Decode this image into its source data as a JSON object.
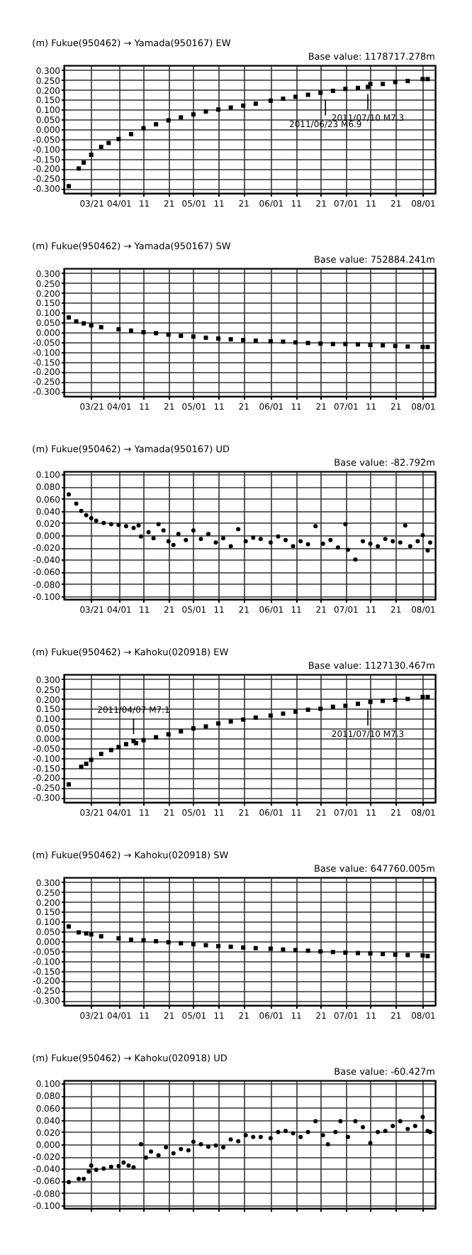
{
  "chart_data": [
    {
      "type": "scatter",
      "title": "(m) Fukue(950462) → Yamada(950167)  EW",
      "annotations": [
        "Base value: 1178717.278m",
        {
          "text": "2011/06/23 M6.9",
          "x": "2011-06-23",
          "y": 0.185
        },
        {
          "text": "2011/07/10 M7.3",
          "x": "2011-07-10",
          "y": 0.215
        }
      ],
      "marker": "square",
      "grid": true,
      "xlim": [
        "2011-03-10",
        "2011-08-06"
      ],
      "xticks": [
        {
          "value": "2011-03-21",
          "label": "03/21"
        },
        {
          "value": "2011-04-01",
          "label": "04/01"
        },
        {
          "value": "2011-04-11",
          "label": "11"
        },
        {
          "value": "2011-04-21",
          "label": "21"
        },
        {
          "value": "2011-05-01",
          "label": "05/01"
        },
        {
          "value": "2011-05-11",
          "label": "11"
        },
        {
          "value": "2011-05-21",
          "label": "21"
        },
        {
          "value": "2011-06-01",
          "label": "06/01"
        },
        {
          "value": "2011-06-11",
          "label": "11"
        },
        {
          "value": "2011-06-21",
          "label": "21"
        },
        {
          "value": "2011-07-01",
          "label": "07/01"
        },
        {
          "value": "2011-07-11",
          "label": "11"
        },
        {
          "value": "2011-07-21",
          "label": "21"
        },
        {
          "value": "2011-08-01",
          "label": "08/01"
        }
      ],
      "ylim": [
        -0.325,
        0.325
      ],
      "yticks": [
        {
          "value": 0.3,
          "label": "0.300"
        },
        {
          "value": 0.25,
          "label": "0.250"
        },
        {
          "value": 0.2,
          "label": "0.200"
        },
        {
          "value": 0.15,
          "label": "0.150"
        },
        {
          "value": 0.1,
          "label": "0.100"
        },
        {
          "value": 0.05,
          "label": "0.050"
        },
        {
          "value": 0,
          "label": "0.000"
        },
        {
          "value": -0.05,
          "label": "-0.050"
        },
        {
          "value": -0.1,
          "label": "-0.100"
        },
        {
          "value": -0.15,
          "label": "-0.150"
        },
        {
          "value": -0.2,
          "label": "-0.200"
        },
        {
          "value": -0.25,
          "label": "-0.250"
        },
        {
          "value": -0.3,
          "label": "-0.300"
        }
      ],
      "x": [
        "2011-03-12",
        "2011-03-16",
        "2011-03-18",
        "2011-03-21",
        "2011-03-25",
        "2011-03-28",
        "2011-04-01",
        "2011-04-06",
        "2011-04-11",
        "2011-04-16",
        "2011-04-21",
        "2011-04-26",
        "2011-05-01",
        "2011-05-06",
        "2011-05-11",
        "2011-05-16",
        "2011-05-21",
        "2011-05-26",
        "2011-06-01",
        "2011-06-06",
        "2011-06-11",
        "2011-06-16",
        "2011-06-21",
        "2011-06-26",
        "2011-07-01",
        "2011-07-06",
        "2011-07-10",
        "2011-07-11",
        "2011-07-16",
        "2011-07-21",
        "2011-07-26",
        "2011-08-01",
        "2011-08-03"
      ],
      "series": [
        {
          "color": "#000000",
          "values": [
            -0.29,
            -0.2,
            -0.17,
            -0.13,
            -0.09,
            -0.07,
            -0.05,
            -0.025,
            0.005,
            0.025,
            0.045,
            0.06,
            0.075,
            0.09,
            0.1,
            0.11,
            0.12,
            0.13,
            0.145,
            0.155,
            0.165,
            0.175,
            0.185,
            0.195,
            0.205,
            0.21,
            0.215,
            0.23,
            0.23,
            0.24,
            0.245,
            0.255,
            0.255
          ]
        }
      ]
    },
    {
      "type": "scatter",
      "title": "(m) Fukue(950462) → Yamada(950167)  SW",
      "annotations": [
        "Base value: 752884.241m"
      ],
      "marker": "square",
      "grid": true,
      "xlim": [
        "2011-03-10",
        "2011-08-06"
      ],
      "xticks": [
        {
          "value": "2011-03-21",
          "label": "03/21"
        },
        {
          "value": "2011-04-01",
          "label": "04/01"
        },
        {
          "value": "2011-04-11",
          "label": "11"
        },
        {
          "value": "2011-04-21",
          "label": "21"
        },
        {
          "value": "2011-05-01",
          "label": "05/01"
        },
        {
          "value": "2011-05-11",
          "label": "11"
        },
        {
          "value": "2011-05-21",
          "label": "21"
        },
        {
          "value": "2011-06-01",
          "label": "06/01"
        },
        {
          "value": "2011-06-11",
          "label": "11"
        },
        {
          "value": "2011-06-21",
          "label": "21"
        },
        {
          "value": "2011-07-01",
          "label": "07/01"
        },
        {
          "value": "2011-07-11",
          "label": "11"
        },
        {
          "value": "2011-07-21",
          "label": "21"
        },
        {
          "value": "2011-08-01",
          "label": "08/01"
        }
      ],
      "ylim": [
        -0.325,
        0.325
      ],
      "yticks": [
        {
          "value": 0.3,
          "label": "0.300"
        },
        {
          "value": 0.25,
          "label": "0.250"
        },
        {
          "value": 0.2,
          "label": "0.200"
        },
        {
          "value": 0.15,
          "label": "0.150"
        },
        {
          "value": 0.1,
          "label": "0.100"
        },
        {
          "value": 0.05,
          "label": "0.050"
        },
        {
          "value": 0,
          "label": "0.000"
        },
        {
          "value": -0.05,
          "label": "-0.050"
        },
        {
          "value": -0.1,
          "label": "-0.100"
        },
        {
          "value": -0.15,
          "label": "-0.150"
        },
        {
          "value": -0.2,
          "label": "-0.200"
        },
        {
          "value": -0.25,
          "label": "-0.250"
        },
        {
          "value": -0.3,
          "label": "-0.300"
        }
      ],
      "x": [
        "2011-03-12",
        "2011-03-15",
        "2011-03-18",
        "2011-03-21",
        "2011-03-25",
        "2011-04-01",
        "2011-04-06",
        "2011-04-11",
        "2011-04-16",
        "2011-04-21",
        "2011-04-26",
        "2011-05-01",
        "2011-05-06",
        "2011-05-11",
        "2011-05-16",
        "2011-05-21",
        "2011-05-26",
        "2011-06-01",
        "2011-06-06",
        "2011-06-11",
        "2011-06-16",
        "2011-06-21",
        "2011-06-26",
        "2011-07-01",
        "2011-07-06",
        "2011-07-11",
        "2011-07-16",
        "2011-07-21",
        "2011-07-26",
        "2011-08-01",
        "2011-08-03"
      ],
      "series": [
        {
          "color": "#000000",
          "values": [
            0.075,
            0.055,
            0.045,
            0.035,
            0.025,
            0.015,
            0.008,
            0.0,
            -0.005,
            -0.012,
            -0.018,
            -0.022,
            -0.028,
            -0.032,
            -0.036,
            -0.04,
            -0.043,
            -0.046,
            -0.048,
            -0.052,
            -0.055,
            -0.058,
            -0.06,
            -0.06,
            -0.062,
            -0.065,
            -0.067,
            -0.07,
            -0.073,
            -0.075,
            -0.075
          ]
        }
      ]
    },
    {
      "type": "scatter",
      "title": "(m) Fukue(950462) → Yamada(950167)  UD",
      "annotations": [
        "Base value: -82.792m"
      ],
      "marker": "circle",
      "grid": true,
      "xlim": [
        "2011-03-10",
        "2011-08-06"
      ],
      "xticks": [
        {
          "value": "2011-03-21",
          "label": "03/21"
        },
        {
          "value": "2011-04-01",
          "label": "04/01"
        },
        {
          "value": "2011-04-11",
          "label": "11"
        },
        {
          "value": "2011-04-21",
          "label": "21"
        },
        {
          "value": "2011-05-01",
          "label": "05/01"
        },
        {
          "value": "2011-05-11",
          "label": "11"
        },
        {
          "value": "2011-05-21",
          "label": "21"
        },
        {
          "value": "2011-06-01",
          "label": "06/01"
        },
        {
          "value": "2011-06-11",
          "label": "11"
        },
        {
          "value": "2011-06-21",
          "label": "21"
        },
        {
          "value": "2011-07-01",
          "label": "07/01"
        },
        {
          "value": "2011-07-11",
          "label": "11"
        },
        {
          "value": "2011-07-21",
          "label": "21"
        },
        {
          "value": "2011-08-01",
          "label": "08/01"
        }
      ],
      "ylim": [
        -0.105,
        0.105
      ],
      "yticks": [
        {
          "value": 0.1,
          "label": "0.100"
        },
        {
          "value": 0.08,
          "label": "0.080"
        },
        {
          "value": 0.06,
          "label": "0.060"
        },
        {
          "value": 0.04,
          "label": "0.040"
        },
        {
          "value": 0.02,
          "label": "0.020"
        },
        {
          "value": 0,
          "label": "0.000"
        },
        {
          "value": -0.02,
          "label": "-0.020"
        },
        {
          "value": -0.04,
          "label": "-0.040"
        },
        {
          "value": -0.06,
          "label": "-0.060"
        },
        {
          "value": -0.08,
          "label": "-0.080"
        },
        {
          "value": -0.1,
          "label": "-0.100"
        }
      ],
      "x": [
        "2011-03-12",
        "2011-03-15",
        "2011-03-17",
        "2011-03-19",
        "2011-03-21",
        "2011-03-23",
        "2011-03-26",
        "2011-03-29",
        "2011-04-01",
        "2011-04-04",
        "2011-04-07",
        "2011-04-09",
        "2011-04-10",
        "2011-04-13",
        "2011-04-15",
        "2011-04-17",
        "2011-04-19",
        "2011-04-21",
        "2011-04-23",
        "2011-04-25",
        "2011-04-28",
        "2011-05-01",
        "2011-05-04",
        "2011-05-07",
        "2011-05-10",
        "2011-05-13",
        "2011-05-16",
        "2011-05-19",
        "2011-05-22",
        "2011-05-25",
        "2011-05-28",
        "2011-06-01",
        "2011-06-04",
        "2011-06-07",
        "2011-06-10",
        "2011-06-13",
        "2011-06-16",
        "2011-06-19",
        "2011-06-22",
        "2011-06-25",
        "2011-06-28",
        "2011-07-01",
        "2011-07-02",
        "2011-07-05",
        "2011-07-08",
        "2011-07-11",
        "2011-07-14",
        "2011-07-17",
        "2011-07-20",
        "2011-07-23",
        "2011-07-25",
        "2011-07-27",
        "2011-07-30",
        "2011-08-01",
        "2011-08-03",
        "2011-08-04"
      ],
      "series": [
        {
          "color": "#000000",
          "values": [
            0.067,
            0.052,
            0.04,
            0.033,
            0.028,
            0.024,
            0.02,
            0.018,
            0.017,
            0.015,
            0.012,
            0.016,
            -0.002,
            0.005,
            -0.005,
            0.018,
            0.008,
            -0.01,
            -0.016,
            0.002,
            -0.008,
            0.008,
            -0.006,
            0.002,
            -0.012,
            -0.005,
            -0.018,
            0.01,
            -0.01,
            -0.004,
            -0.006,
            -0.012,
            -0.002,
            -0.008,
            -0.018,
            -0.01,
            -0.015,
            0.015,
            -0.014,
            -0.008,
            -0.02,
            0.018,
            -0.024,
            -0.04,
            -0.01,
            -0.014,
            -0.018,
            -0.006,
            -0.01,
            -0.012,
            0.016,
            -0.018,
            -0.01,
            0.0,
            -0.025,
            -0.012
          ]
        }
      ]
    },
    {
      "type": "scatter",
      "title": "(m) Fukue(950462) → Kahoku(020918)  EW",
      "annotations": [
        "Base value: 1127130.467m",
        {
          "text": "2011/04/07 M7.1",
          "x": "2011-04-07",
          "y": -0.015
        },
        {
          "text": "2011/07/10 M7.3",
          "x": "2011-07-10",
          "y": 0.18
        }
      ],
      "marker": "square",
      "grid": true,
      "xlim": [
        "2011-03-10",
        "2011-08-06"
      ],
      "xticks": [
        {
          "value": "2011-03-21",
          "label": "03/21"
        },
        {
          "value": "2011-04-01",
          "label": "04/01"
        },
        {
          "value": "2011-04-11",
          "label": "11"
        },
        {
          "value": "2011-04-21",
          "label": "21"
        },
        {
          "value": "2011-05-01",
          "label": "05/01"
        },
        {
          "value": "2011-05-11",
          "label": "11"
        },
        {
          "value": "2011-05-21",
          "label": "21"
        },
        {
          "value": "2011-06-01",
          "label": "06/01"
        },
        {
          "value": "2011-06-11",
          "label": "11"
        },
        {
          "value": "2011-06-21",
          "label": "21"
        },
        {
          "value": "2011-07-01",
          "label": "07/01"
        },
        {
          "value": "2011-07-11",
          "label": "11"
        },
        {
          "value": "2011-07-21",
          "label": "21"
        },
        {
          "value": "2011-08-01",
          "label": "08/01"
        }
      ],
      "ylim": [
        -0.325,
        0.325
      ],
      "yticks": [
        {
          "value": 0.3,
          "label": "0.300"
        },
        {
          "value": 0.25,
          "label": "0.250"
        },
        {
          "value": 0.2,
          "label": "0.200"
        },
        {
          "value": 0.15,
          "label": "0.150"
        },
        {
          "value": 0.1,
          "label": "0.100"
        },
        {
          "value": 0.05,
          "label": "0.050"
        },
        {
          "value": 0,
          "label": "0.000"
        },
        {
          "value": -0.05,
          "label": "-0.050"
        },
        {
          "value": -0.1,
          "label": "-0.100"
        },
        {
          "value": -0.15,
          "label": "-0.150"
        },
        {
          "value": -0.2,
          "label": "-0.200"
        },
        {
          "value": -0.25,
          "label": "-0.250"
        },
        {
          "value": -0.3,
          "label": "-0.300"
        }
      ],
      "x": [
        "2011-03-12",
        "2011-03-17",
        "2011-03-19",
        "2011-03-21",
        "2011-03-25",
        "2011-03-29",
        "2011-04-01",
        "2011-04-04",
        "2011-04-07",
        "2011-04-08",
        "2011-04-11",
        "2011-04-16",
        "2011-04-21",
        "2011-04-26",
        "2011-05-01",
        "2011-05-06",
        "2011-05-11",
        "2011-05-16",
        "2011-05-21",
        "2011-05-26",
        "2011-06-01",
        "2011-06-06",
        "2011-06-11",
        "2011-06-16",
        "2011-06-21",
        "2011-06-26",
        "2011-07-01",
        "2011-07-06",
        "2011-07-11",
        "2011-07-16",
        "2011-07-21",
        "2011-07-26",
        "2011-08-01",
        "2011-08-03"
      ],
      "series": [
        {
          "color": "#000000",
          "values": [
            -0.235,
            -0.145,
            -0.13,
            -0.11,
            -0.08,
            -0.06,
            -0.045,
            -0.03,
            -0.015,
            -0.025,
            -0.01,
            0.005,
            0.02,
            0.035,
            0.05,
            0.06,
            0.075,
            0.085,
            0.095,
            0.105,
            0.115,
            0.125,
            0.135,
            0.145,
            0.15,
            0.16,
            0.165,
            0.175,
            0.185,
            0.19,
            0.195,
            0.2,
            0.21,
            0.21
          ]
        }
      ]
    },
    {
      "type": "scatter",
      "title": "(m) Fukue(950462) → Kahoku(020918)  SW",
      "annotations": [
        "Base value: 647760.005m"
      ],
      "marker": "square",
      "grid": true,
      "xlim": [
        "2011-03-10",
        "2011-08-06"
      ],
      "xticks": [
        {
          "value": "2011-03-21",
          "label": "03/21"
        },
        {
          "value": "2011-04-01",
          "label": "04/01"
        },
        {
          "value": "2011-04-11",
          "label": "11"
        },
        {
          "value": "2011-04-21",
          "label": "21"
        },
        {
          "value": "2011-05-01",
          "label": "05/01"
        },
        {
          "value": "2011-05-11",
          "label": "11"
        },
        {
          "value": "2011-05-21",
          "label": "21"
        },
        {
          "value": "2011-06-01",
          "label": "06/01"
        },
        {
          "value": "2011-06-11",
          "label": "11"
        },
        {
          "value": "2011-06-21",
          "label": "21"
        },
        {
          "value": "2011-07-01",
          "label": "07/01"
        },
        {
          "value": "2011-07-11",
          "label": "11"
        },
        {
          "value": "2011-07-21",
          "label": "21"
        },
        {
          "value": "2011-08-01",
          "label": "08/01"
        }
      ],
      "ylim": [
        -0.325,
        0.325
      ],
      "yticks": [
        {
          "value": 0.3,
          "label": "0.300"
        },
        {
          "value": 0.25,
          "label": "0.250"
        },
        {
          "value": 0.2,
          "label": "0.200"
        },
        {
          "value": 0.15,
          "label": "0.150"
        },
        {
          "value": 0.1,
          "label": "0.100"
        },
        {
          "value": 0.05,
          "label": "0.050"
        },
        {
          "value": 0,
          "label": "0.000"
        },
        {
          "value": -0.05,
          "label": "-0.050"
        },
        {
          "value": -0.1,
          "label": "-0.100"
        },
        {
          "value": -0.15,
          "label": "-0.150"
        },
        {
          "value": -0.2,
          "label": "-0.200"
        },
        {
          "value": -0.25,
          "label": "-0.250"
        },
        {
          "value": -0.3,
          "label": "-0.300"
        }
      ],
      "x": [
        "2011-03-12",
        "2011-03-16",
        "2011-03-19",
        "2011-03-21",
        "2011-03-25",
        "2011-04-01",
        "2011-04-06",
        "2011-04-11",
        "2011-04-16",
        "2011-04-21",
        "2011-04-26",
        "2011-05-01",
        "2011-05-06",
        "2011-05-11",
        "2011-05-16",
        "2011-05-21",
        "2011-05-26",
        "2011-06-01",
        "2011-06-06",
        "2011-06-11",
        "2011-06-16",
        "2011-06-21",
        "2011-06-26",
        "2011-07-01",
        "2011-07-06",
        "2011-07-11",
        "2011-07-16",
        "2011-07-21",
        "2011-07-26",
        "2011-08-01",
        "2011-08-03"
      ],
      "series": [
        {
          "color": "#000000",
          "values": [
            0.075,
            0.045,
            0.04,
            0.035,
            0.025,
            0.015,
            0.008,
            0.005,
            0.0,
            -0.005,
            -0.01,
            -0.015,
            -0.02,
            -0.025,
            -0.028,
            -0.032,
            -0.035,
            -0.038,
            -0.042,
            -0.045,
            -0.048,
            -0.052,
            -0.055,
            -0.058,
            -0.06,
            -0.062,
            -0.065,
            -0.068,
            -0.07,
            -0.072,
            -0.075
          ]
        }
      ]
    },
    {
      "type": "scatter",
      "title": "(m) Fukue(950462) → Kahoku(020918)  UD",
      "annotations": [
        "Base value: -60.427m"
      ],
      "marker": "circle",
      "grid": true,
      "tick_labels": "y",
      "xlim": [
        "2011-03-10",
        "2011-08-06"
      ],
      "xticks": [
        {
          "value": "2011-03-21",
          "label": null
        },
        {
          "value": "2011-04-01",
          "label": null
        },
        {
          "value": "2011-04-11",
          "label": null
        },
        {
          "value": "2011-04-21",
          "label": null
        },
        {
          "value": "2011-05-01",
          "label": null
        },
        {
          "value": "2011-05-11",
          "label": null
        },
        {
          "value": "2011-05-21",
          "label": null
        },
        {
          "value": "2011-06-01",
          "label": null
        },
        {
          "value": "2011-06-11",
          "label": null
        },
        {
          "value": "2011-06-21",
          "label": null
        },
        {
          "value": "2011-07-01",
          "label": null
        },
        {
          "value": "2011-07-11",
          "label": null
        },
        {
          "value": "2011-07-21",
          "label": null
        },
        {
          "value": "2011-08-01",
          "label": null
        }
      ],
      "ylim": [
        -0.105,
        0.105
      ],
      "yticks": [
        {
          "value": 0.1,
          "label": "0.100"
        },
        {
          "value": 0.08,
          "label": "0.080"
        },
        {
          "value": 0.06,
          "label": "0.060"
        },
        {
          "value": 0.04,
          "label": "0.040"
        },
        {
          "value": 0.02,
          "label": "0.020"
        },
        {
          "value": 0,
          "label": "0.000"
        },
        {
          "value": -0.02,
          "label": "-0.020"
        },
        {
          "value": -0.04,
          "label": "-0.040"
        },
        {
          "value": -0.06,
          "label": "-0.060"
        },
        {
          "value": -0.08,
          "label": "-0.080"
        },
        {
          "value": -0.1,
          "label": "-0.100"
        }
      ],
      "x": [
        "2011-03-12",
        "2011-03-16",
        "2011-03-18",
        "2011-03-20",
        "2011-03-21",
        "2011-03-23",
        "2011-03-26",
        "2011-03-29",
        "2011-04-01",
        "2011-04-03",
        "2011-04-05",
        "2011-04-07",
        "2011-04-10",
        "2011-04-12",
        "2011-04-14",
        "2011-04-17",
        "2011-04-20",
        "2011-04-23",
        "2011-04-26",
        "2011-04-29",
        "2011-05-01",
        "2011-05-04",
        "2011-05-07",
        "2011-05-10",
        "2011-05-13",
        "2011-05-16",
        "2011-05-19",
        "2011-05-22",
        "2011-05-25",
        "2011-05-28",
        "2011-06-01",
        "2011-06-04",
        "2011-06-07",
        "2011-06-10",
        "2011-06-13",
        "2011-06-16",
        "2011-06-19",
        "2011-06-22",
        "2011-06-24",
        "2011-06-27",
        "2011-06-29",
        "2011-07-02",
        "2011-07-05",
        "2011-07-08",
        "2011-07-11",
        "2011-07-14",
        "2011-07-17",
        "2011-07-20",
        "2011-07-23",
        "2011-07-26",
        "2011-07-29",
        "2011-08-01",
        "2011-08-03",
        "2011-08-04"
      ],
      "series": [
        {
          "color": "#000000",
          "values": [
            -0.062,
            -0.057,
            -0.057,
            -0.045,
            -0.035,
            -0.042,
            -0.04,
            -0.037,
            -0.036,
            -0.03,
            -0.035,
            -0.038,
            0.0,
            -0.022,
            -0.012,
            -0.018,
            -0.005,
            -0.015,
            -0.008,
            -0.01,
            0.004,
            0.0,
            -0.004,
            -0.002,
            -0.005,
            0.008,
            0.005,
            0.015,
            0.012,
            0.012,
            0.01,
            0.02,
            0.022,
            0.018,
            0.012,
            0.02,
            0.038,
            0.015,
            0.0,
            0.02,
            0.038,
            0.012,
            0.038,
            0.028,
            0.002,
            0.02,
            0.022,
            0.03,
            0.038,
            0.025,
            0.03,
            0.045,
            0.022,
            0.02
          ]
        }
      ]
    }
  ]
}
